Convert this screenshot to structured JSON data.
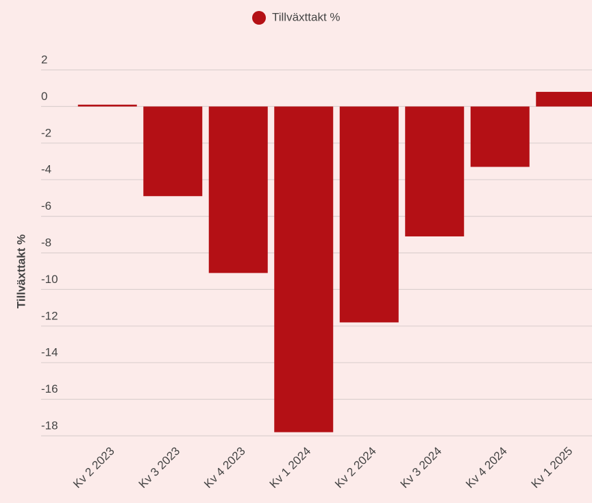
{
  "chart_data": {
    "type": "bar",
    "legend": "Tillväxttakt %",
    "y_label": "Tillväxttakt %",
    "categories": [
      "Kv 2 2023",
      "Kv 3 2023",
      "Kv 4 2023",
      "Kv 1 2024",
      "Kv 2 2024",
      "Kv 3 2024",
      "Kv 4 2024",
      "Kv 1 2025"
    ],
    "values": [
      0.1,
      -4.9,
      -9.1,
      -17.8,
      -11.8,
      -7.1,
      -3.3,
      0.8
    ],
    "color": "#b41015",
    "ylim": [
      -18,
      2
    ],
    "yticks": [
      2,
      0,
      -2,
      -4,
      -6,
      -8,
      -10,
      -12,
      -14,
      -16,
      -18
    ],
    "grid": true
  }
}
